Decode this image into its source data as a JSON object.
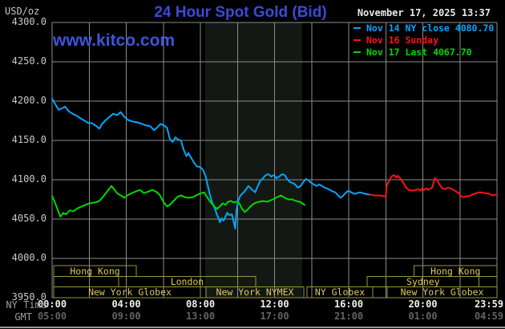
{
  "header": {
    "unit_label": "USD/oz",
    "title": "24 Hour Spot Gold (Bid)",
    "datetime": "November 17, 2025 13:37",
    "watermark": "www.kitco.com"
  },
  "legend": {
    "entries": [
      {
        "label": "Nov 14 NY close 4080.70",
        "color": "#00a6ff"
      },
      {
        "label": "Nov 16 Sunday",
        "color": "#fa1414"
      },
      {
        "label": "Nov 17 Last 4067.70",
        "color": "#00d800"
      }
    ]
  },
  "axes": {
    "y_ticks": [
      "4300.0",
      "4250.0",
      "4200.0",
      "4150.0",
      "4100.0",
      "4050.0",
      "4000.0",
      "3950.0"
    ],
    "y_tick_values": [
      4300,
      4250,
      4200,
      4150,
      4100,
      4050,
      4000,
      3950
    ],
    "x_rows": [
      {
        "name": "NY Time",
        "labels": [
          "00:00",
          "04:00",
          "08:00",
          "12:00",
          "16:00",
          "20:00",
          "23:59"
        ]
      },
      {
        "name": "GMT",
        "labels": [
          "05:00",
          "09:00",
          "13:00",
          "17:00",
          "21:00",
          "01:00",
          "04:59"
        ]
      }
    ],
    "x_tick_hours": [
      0,
      4,
      8,
      12,
      16,
      20,
      23.983
    ]
  },
  "sessions": {
    "rows": [
      {
        "boxes": [
          {
            "label": "Hong Kong",
            "start_h": 0.09,
            "end_h": 4.54
          },
          {
            "label": "Hong Kong",
            "start_h": 19.53,
            "end_h": 24
          }
        ]
      },
      {
        "boxes": [
          {
            "label": "",
            "start_h": 0.09,
            "end_h": 3.59
          },
          {
            "label": "London",
            "start_h": 3.59,
            "end_h": 10.98
          },
          {
            "label": "Sydney",
            "start_h": 17.0,
            "end_h": 23.03
          }
        ]
      },
      {
        "boxes": [
          {
            "label": "New York Globex",
            "start_h": 0.09,
            "end_h": 8.3
          },
          {
            "label": "New York NYMEX",
            "start_h": 8.3,
            "end_h": 13.58
          },
          {
            "label": "NY Globex",
            "start_h": 13.75,
            "end_h": 17.3
          },
          {
            "label": "New York Globex",
            "start_h": 18.08,
            "end_h": 24
          }
        ]
      }
    ]
  },
  "highlight_band": {
    "start_h": 8.26,
    "end_h": 13.49
  },
  "colors": {
    "background": "#000000",
    "grid": "#8b8b8b",
    "band": "#141814",
    "session_border": "#96963a",
    "session_label": "#ddc75d",
    "divider": "#9a9a9a",
    "title": "#3a4bd8",
    "watermark": "#3c55dd"
  },
  "chart_data": {
    "type": "line",
    "title": "24 Hour Spot Gold (Bid)",
    "xlabel": "NY Time (hours)",
    "ylabel": "USD/oz",
    "x_range": [
      0,
      24
    ],
    "y_range": [
      3950,
      4300
    ],
    "grid": {
      "x_step_hours": 2,
      "y_step": 50,
      "on": true
    },
    "legend_position": "top-right",
    "series": [
      {
        "name": "Nov 14",
        "color": "#00a6ff",
        "points": [
          [
            0,
            4203
          ],
          [
            0.2,
            4195
          ],
          [
            0.35,
            4189
          ],
          [
            0.55,
            4191
          ],
          [
            0.7,
            4193
          ],
          [
            0.9,
            4187
          ],
          [
            1.1,
            4184
          ],
          [
            1.35,
            4181
          ],
          [
            1.55,
            4178
          ],
          [
            1.75,
            4175
          ],
          [
            1.95,
            4172
          ],
          [
            2.15,
            4172
          ],
          [
            2.4,
            4168
          ],
          [
            2.55,
            4165
          ],
          [
            2.7,
            4171
          ],
          [
            2.9,
            4176
          ],
          [
            3.1,
            4180
          ],
          [
            3.3,
            4184
          ],
          [
            3.5,
            4182
          ],
          [
            3.7,
            4186
          ],
          [
            3.9,
            4180
          ],
          [
            4.1,
            4176
          ],
          [
            4.35,
            4174
          ],
          [
            4.6,
            4173
          ],
          [
            4.85,
            4171
          ],
          [
            5.1,
            4169
          ],
          [
            5.3,
            4168
          ],
          [
            5.5,
            4163
          ],
          [
            5.65,
            4166
          ],
          [
            5.85,
            4171
          ],
          [
            6.05,
            4169
          ],
          [
            6.2,
            4166
          ],
          [
            6.35,
            4152
          ],
          [
            6.5,
            4148
          ],
          [
            6.65,
            4154
          ],
          [
            6.8,
            4151
          ],
          [
            6.95,
            4150
          ],
          [
            7.1,
            4138
          ],
          [
            7.25,
            4130
          ],
          [
            7.35,
            4134
          ],
          [
            7.5,
            4128
          ],
          [
            7.65,
            4122
          ],
          [
            7.8,
            4117
          ],
          [
            8.0,
            4116
          ],
          [
            8.15,
            4112
          ],
          [
            8.3,
            4103
          ],
          [
            8.4,
            4092
          ],
          [
            8.5,
            4082
          ],
          [
            8.65,
            4070
          ],
          [
            8.8,
            4062
          ],
          [
            8.9,
            4055
          ],
          [
            9.0,
            4050
          ],
          [
            9.05,
            4046
          ],
          [
            9.15,
            4051
          ],
          [
            9.25,
            4048
          ],
          [
            9.35,
            4053
          ],
          [
            9.45,
            4058
          ],
          [
            9.55,
            4055
          ],
          [
            9.7,
            4056
          ],
          [
            9.88,
            4038
          ],
          [
            9.95,
            4062
          ],
          [
            10.05,
            4074
          ],
          [
            10.16,
            4080
          ],
          [
            10.38,
            4085
          ],
          [
            10.59,
            4092
          ],
          [
            10.81,
            4087
          ],
          [
            10.95,
            4084
          ],
          [
            11.1,
            4092
          ],
          [
            11.24,
            4099
          ],
          [
            11.38,
            4102
          ],
          [
            11.53,
            4106
          ],
          [
            11.68,
            4107
          ],
          [
            11.81,
            4104
          ],
          [
            11.97,
            4106
          ],
          [
            12.11,
            4102
          ],
          [
            12.25,
            4104
          ],
          [
            12.4,
            4107
          ],
          [
            12.54,
            4106
          ],
          [
            12.68,
            4101
          ],
          [
            12.83,
            4097
          ],
          [
            12.97,
            4096
          ],
          [
            13.11,
            4094
          ],
          [
            13.26,
            4090
          ],
          [
            13.41,
            4092
          ],
          [
            13.55,
            4097
          ],
          [
            13.7,
            4101
          ],
          [
            13.84,
            4099
          ],
          [
            13.98,
            4096
          ],
          [
            14.12,
            4094
          ],
          [
            14.27,
            4092
          ],
          [
            14.41,
            4094
          ],
          [
            14.56,
            4092
          ],
          [
            14.7,
            4090
          ],
          [
            14.84,
            4089
          ],
          [
            14.99,
            4087
          ],
          [
            15.14,
            4085
          ],
          [
            15.28,
            4084
          ],
          [
            15.43,
            4080
          ],
          [
            15.57,
            4077
          ],
          [
            15.71,
            4080
          ],
          [
            15.86,
            4084
          ],
          [
            16.0,
            4086
          ],
          [
            16.14,
            4084
          ],
          [
            16.3,
            4082
          ],
          [
            16.6,
            4084
          ],
          [
            16.9,
            4082
          ],
          [
            17.15,
            4081
          ]
        ]
      },
      {
        "name": "Nov 16",
        "color": "#fa1414",
        "points": [
          [
            17.15,
            4081
          ],
          [
            17.4,
            4080
          ],
          [
            17.7,
            4080
          ],
          [
            17.95,
            4079
          ],
          [
            18.0,
            4078
          ],
          [
            18.05,
            4093
          ],
          [
            18.15,
            4097
          ],
          [
            18.3,
            4104
          ],
          [
            18.45,
            4106
          ],
          [
            18.55,
            4103
          ],
          [
            18.65,
            4105
          ],
          [
            18.8,
            4101
          ],
          [
            18.95,
            4096
          ],
          [
            19.1,
            4090
          ],
          [
            19.25,
            4087
          ],
          [
            19.45,
            4086
          ],
          [
            19.6,
            4087
          ],
          [
            19.75,
            4088
          ],
          [
            19.9,
            4086
          ],
          [
            19.95,
            4089
          ],
          [
            20.05,
            4087
          ],
          [
            20.2,
            4089
          ],
          [
            20.3,
            4087
          ],
          [
            20.5,
            4090
          ],
          [
            20.6,
            4098
          ],
          [
            20.65,
            4102
          ],
          [
            20.75,
            4100
          ],
          [
            20.9,
            4094
          ],
          [
            21.05,
            4089
          ],
          [
            21.2,
            4088
          ],
          [
            21.35,
            4090
          ],
          [
            21.5,
            4089
          ],
          [
            21.65,
            4087
          ],
          [
            21.8,
            4085
          ],
          [
            21.95,
            4083
          ],
          [
            22.05,
            4079
          ],
          [
            22.2,
            4078
          ],
          [
            22.35,
            4079
          ],
          [
            22.5,
            4079
          ],
          [
            22.65,
            4081
          ],
          [
            22.8,
            4082
          ],
          [
            23.0,
            4084
          ],
          [
            23.15,
            4084
          ],
          [
            23.3,
            4083
          ],
          [
            23.45,
            4083
          ],
          [
            23.6,
            4082
          ],
          [
            23.75,
            4080
          ],
          [
            23.9,
            4081
          ],
          [
            23.98,
            4081
          ]
        ]
      },
      {
        "name": "Nov 17",
        "color": "#00d800",
        "points": [
          [
            0,
            4079
          ],
          [
            0.12,
            4073
          ],
          [
            0.3,
            4062
          ],
          [
            0.45,
            4053
          ],
          [
            0.6,
            4058
          ],
          [
            0.75,
            4056
          ],
          [
            0.95,
            4061
          ],
          [
            1.15,
            4060
          ],
          [
            1.4,
            4064
          ],
          [
            1.7,
            4067
          ],
          [
            2.0,
            4070
          ],
          [
            2.3,
            4071
          ],
          [
            2.55,
            4073
          ],
          [
            2.8,
            4080
          ],
          [
            3.0,
            4086
          ],
          [
            3.2,
            4092
          ],
          [
            3.35,
            4088
          ],
          [
            3.5,
            4083
          ],
          [
            3.7,
            4080
          ],
          [
            3.9,
            4077
          ],
          [
            4.05,
            4080
          ],
          [
            4.3,
            4083
          ],
          [
            4.5,
            4085
          ],
          [
            4.75,
            4087
          ],
          [
            4.95,
            4083
          ],
          [
            5.2,
            4085
          ],
          [
            5.4,
            4087
          ],
          [
            5.6,
            4085
          ],
          [
            5.8,
            4081
          ],
          [
            6.0,
            4072
          ],
          [
            6.2,
            4066
          ],
          [
            6.35,
            4068
          ],
          [
            6.55,
            4073
          ],
          [
            6.75,
            4078
          ],
          [
            6.95,
            4080
          ],
          [
            7.15,
            4078
          ],
          [
            7.35,
            4077
          ],
          [
            7.6,
            4078
          ],
          [
            7.85,
            4081
          ],
          [
            8.05,
            4083
          ],
          [
            8.2,
            4084
          ],
          [
            8.3,
            4080
          ],
          [
            8.45,
            4075
          ],
          [
            8.6,
            4070
          ],
          [
            8.75,
            4066
          ],
          [
            8.9,
            4063
          ],
          [
            9.05,
            4066
          ],
          [
            9.2,
            4070
          ],
          [
            9.35,
            4068
          ],
          [
            9.5,
            4072
          ],
          [
            9.65,
            4073
          ],
          [
            9.8,
            4071
          ],
          [
            9.95,
            4072
          ],
          [
            10.1,
            4070
          ],
          [
            10.25,
            4063
          ],
          [
            10.4,
            4059
          ],
          [
            10.55,
            4062
          ],
          [
            10.7,
            4066
          ],
          [
            10.85,
            4069
          ],
          [
            11.0,
            4071
          ],
          [
            11.2,
            4072
          ],
          [
            11.4,
            4073
          ],
          [
            11.6,
            4072
          ],
          [
            11.8,
            4074
          ],
          [
            12.0,
            4076
          ],
          [
            12.15,
            4078
          ],
          [
            12.35,
            4080
          ],
          [
            12.55,
            4077
          ],
          [
            12.75,
            4075
          ],
          [
            12.95,
            4075
          ],
          [
            13.15,
            4073
          ],
          [
            13.35,
            4072
          ],
          [
            13.5,
            4070
          ],
          [
            13.62,
            4068
          ]
        ]
      }
    ]
  }
}
